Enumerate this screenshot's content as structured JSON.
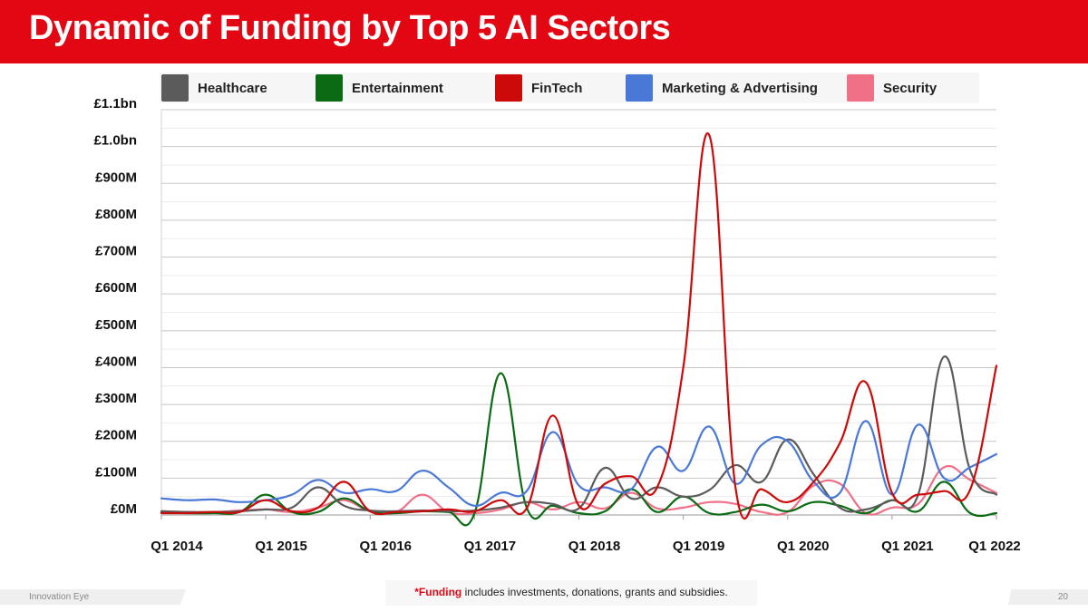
{
  "header": {
    "title": "Dynamic of Funding by Top 5 AI Sectors"
  },
  "colors": {
    "banner": "#e30613",
    "healthcare": "#5b5b5b",
    "entertainment": "#0b6b14",
    "fintech": "#cc0a0a",
    "marketing": "#4a78d6",
    "security": "#f07088"
  },
  "chart_data": {
    "type": "line",
    "title": "Dynamic of Funding by Top 5 AI Sectors",
    "xlabel": "",
    "ylabel": "",
    "ylim": [
      0,
      1100
    ],
    "y_unit": "£M",
    "yticks": [
      {
        "value": 0,
        "label": "£0M"
      },
      {
        "value": 100,
        "label": "£100M"
      },
      {
        "value": 200,
        "label": "£200M"
      },
      {
        "value": 300,
        "label": "£300M"
      },
      {
        "value": 400,
        "label": "£400M"
      },
      {
        "value": 500,
        "label": "£500M"
      },
      {
        "value": 600,
        "label": "£600M"
      },
      {
        "value": 700,
        "label": "£700M"
      },
      {
        "value": 800,
        "label": "£800M"
      },
      {
        "value": 900,
        "label": "£900M"
      },
      {
        "value": 1000,
        "label": "£1.0bn"
      },
      {
        "value": 1100,
        "label": "£1.1bn"
      }
    ],
    "grid": true,
    "legend_position": "top",
    "x_tick_labels": [
      "Q1 2014",
      "Q1 2015",
      "Q1 2016",
      "Q1 2017",
      "Q1 2018",
      "Q1 2019",
      "Q1 2020",
      "Q1 2021",
      "Q1 2022"
    ],
    "x_tick_every": 4,
    "x": [
      "Q1 2014",
      "Q2 2014",
      "Q3 2014",
      "Q4 2014",
      "Q1 2015",
      "Q2 2015",
      "Q3 2015",
      "Q4 2015",
      "Q1 2016",
      "Q2 2016",
      "Q3 2016",
      "Q4 2016",
      "Q1 2017",
      "Q2 2017",
      "Q3 2017",
      "Q4 2017",
      "Q1 2018",
      "Q2 2018",
      "Q3 2018",
      "Q4 2018",
      "Q1 2019",
      "Q2 2019",
      "Q3 2019",
      "Q4 2019",
      "Q1 2020",
      "Q2 2020",
      "Q3 2020",
      "Q4 2020",
      "Q1 2021",
      "Q2 2021",
      "Q3 2021",
      "Q4 2021",
      "Q1 2022"
    ],
    "series": [
      {
        "name": "Healthcare",
        "color": "#5b5b5b",
        "values": [
          10,
          8,
          8,
          10,
          15,
          20,
          75,
          25,
          12,
          10,
          12,
          10,
          12,
          20,
          35,
          30,
          18,
          128,
          45,
          75,
          50,
          68,
          135,
          90,
          205,
          110,
          20,
          15,
          40,
          55,
          430,
          120,
          55
        ]
      },
      {
        "name": "Entertainment",
        "color": "#0b6b14",
        "values": [
          8,
          5,
          5,
          8,
          55,
          8,
          8,
          45,
          10,
          5,
          10,
          8,
          5,
          385,
          20,
          25,
          5,
          10,
          70,
          8,
          50,
          5,
          8,
          28,
          10,
          35,
          25,
          5,
          40,
          10,
          90,
          5,
          5
        ]
      },
      {
        "name": "FinTech",
        "color": "#cc0a0a",
        "values": [
          5,
          5,
          8,
          8,
          40,
          10,
          20,
          90,
          10,
          8,
          10,
          15,
          10,
          40,
          18,
          270,
          25,
          85,
          105,
          75,
          400,
          1030,
          75,
          70,
          35,
          90,
          195,
          360,
          60,
          55,
          65,
          70,
          405
        ]
      },
      {
        "name": "Marketing & Advertising",
        "color": "#4a78d6",
        "values": [
          45,
          40,
          42,
          35,
          40,
          55,
          95,
          60,
          70,
          65,
          120,
          75,
          25,
          60,
          65,
          225,
          80,
          75,
          70,
          185,
          120,
          240,
          85,
          190,
          200,
          90,
          60,
          255,
          55,
          245,
          100,
          130,
          165
        ]
      },
      {
        "name": "Security",
        "color": "#f07088",
        "values": [
          10,
          8,
          8,
          12,
          15,
          8,
          20,
          40,
          10,
          8,
          55,
          8,
          5,
          15,
          35,
          15,
          35,
          18,
          60,
          18,
          20,
          35,
          30,
          8,
          8,
          80,
          85,
          5,
          20,
          30,
          130,
          95,
          60
        ]
      }
    ]
  },
  "footer": {
    "brand": "Innovation Eye",
    "page_number": "20",
    "note_highlight": "*Funding",
    "note_text": " includes investments, donations, grants and subsidies."
  }
}
